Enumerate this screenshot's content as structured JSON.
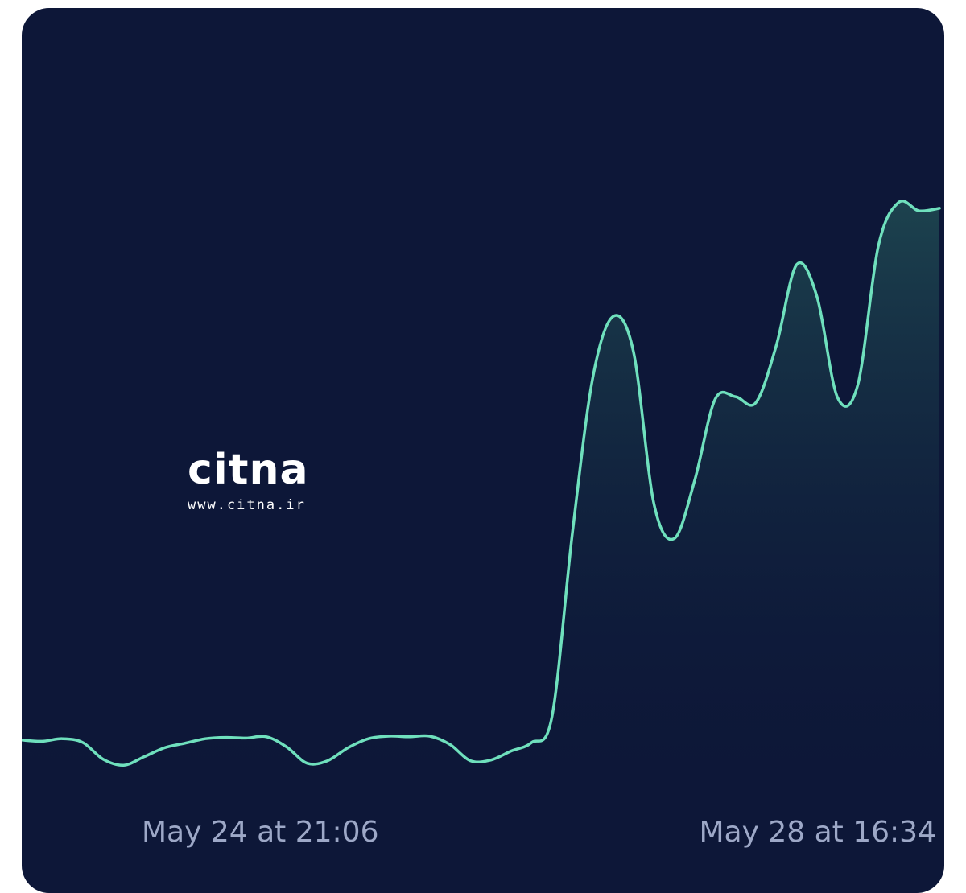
{
  "watermark": {
    "logo_text": "citna",
    "url": "www.citna.ir"
  },
  "colors": {
    "background": "#0d1738",
    "line": "#6fe0bd",
    "fill": "#1f4a52",
    "axis_label": "#9da8c7"
  },
  "chart_data": {
    "type": "area",
    "title": "",
    "xlabel": "",
    "ylabel": "",
    "grid": false,
    "x_tick_labels": [
      "May 24 at 21:06",
      "May 28 at 16:34"
    ],
    "ylim": [
      0,
      100
    ],
    "series": [
      {
        "values": [
          8.1,
          7.9,
          8.3,
          7.7,
          5.1,
          4.2,
          5.5,
          6.9,
          7.6,
          8.3,
          8.5,
          8.4,
          8.6,
          7.0,
          4.5,
          4.9,
          6.9,
          8.3,
          8.7,
          8.6,
          8.7,
          7.4,
          4.9,
          5.0,
          6.4,
          7.7,
          11.7,
          40.0,
          64.0,
          73.5,
          68.0,
          44.6,
          39.2,
          48.2,
          60.7,
          61.1,
          60.2,
          69.0,
          81.5,
          76.5,
          61.0,
          63.0,
          84.3,
          91.1,
          89.8,
          90.2
        ]
      }
    ]
  }
}
